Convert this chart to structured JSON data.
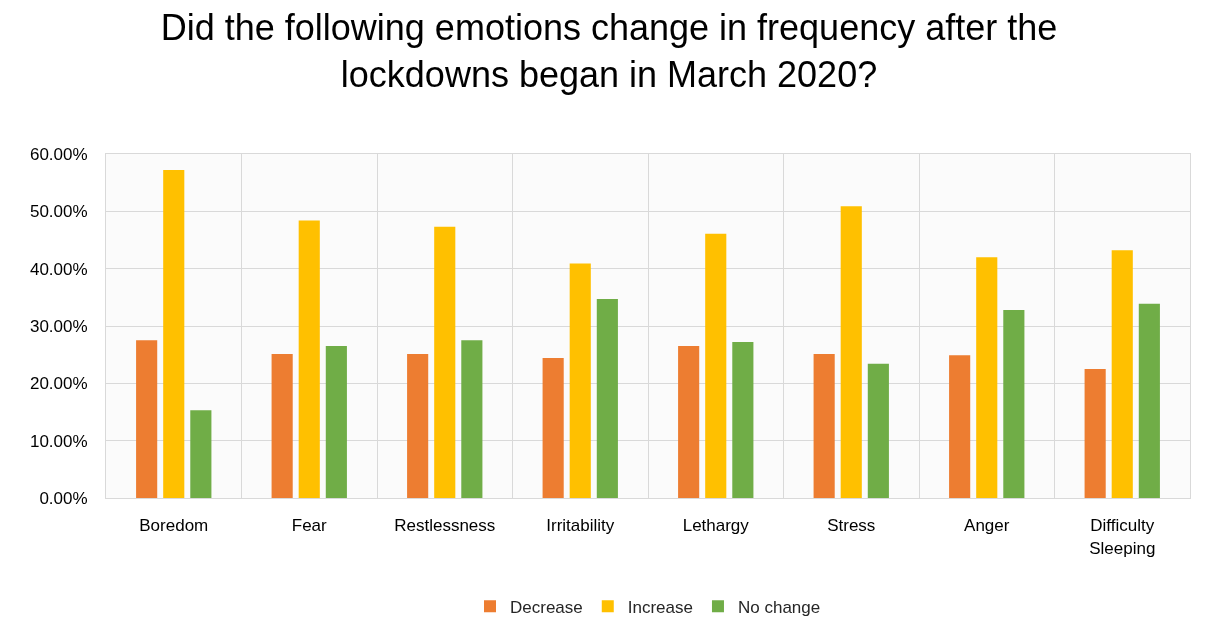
{
  "chart_data": {
    "type": "bar",
    "title": "Did the following emotions change in frequency after the lockdowns began in March 2020?",
    "categories": [
      "Boredom",
      "Fear",
      "Restlessness",
      "Irritability",
      "Lethargy",
      "Stress",
      "Anger",
      "Difficulty Sleeping"
    ],
    "series": [
      {
        "name": "Decrease",
        "color": "#ed7d31",
        "values": [
          27.5,
          25.1,
          25.1,
          24.4,
          26.5,
          25.1,
          24.9,
          22.5
        ]
      },
      {
        "name": "Increase",
        "color": "#ffc000",
        "values": [
          57.2,
          48.4,
          47.3,
          40.9,
          46.1,
          50.9,
          42.0,
          43.2
        ]
      },
      {
        "name": "No change",
        "color": "#70ad47",
        "values": [
          15.3,
          26.5,
          27.5,
          34.7,
          27.2,
          23.4,
          32.8,
          33.9
        ]
      }
    ],
    "ylim": [
      0,
      60
    ],
    "yticks": [
      {
        "value": 0,
        "label": "0.00%"
      },
      {
        "value": 10,
        "label": "10.00%"
      },
      {
        "value": 20,
        "label": "20.00%"
      },
      {
        "value": 30,
        "label": "30.00%"
      },
      {
        "value": 40,
        "label": "40.00%"
      },
      {
        "value": 50,
        "label": "50.00%"
      },
      {
        "value": 60,
        "label": "60.00%"
      }
    ],
    "grid": true,
    "legend": "bottom"
  }
}
